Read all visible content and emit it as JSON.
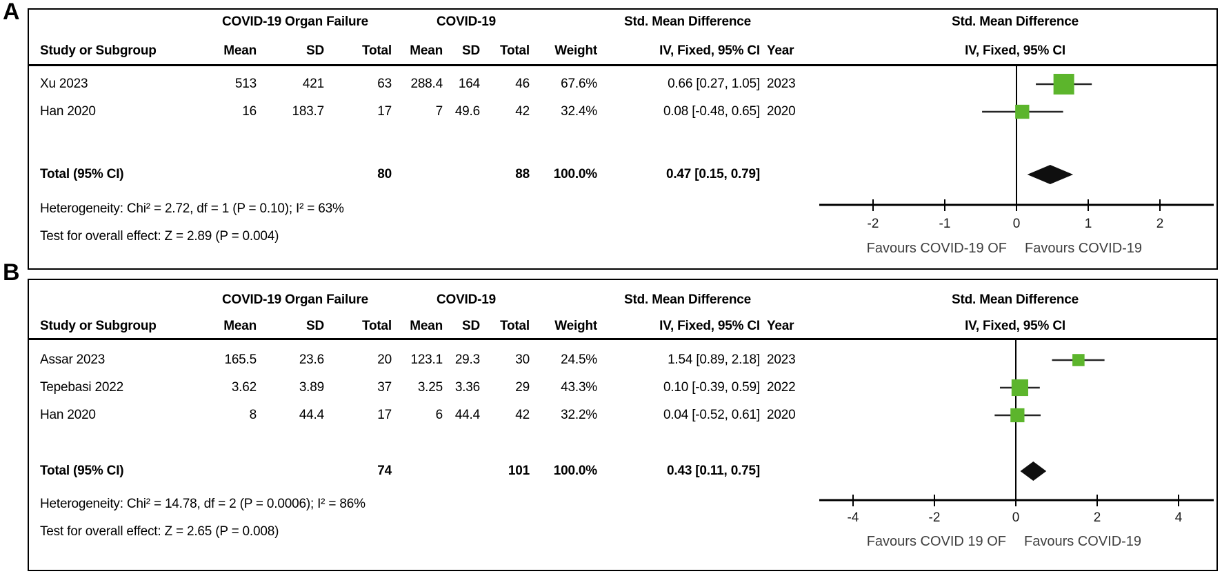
{
  "colors": {
    "square_green": "#5CB52C",
    "diamond_black": "#0f0f0f",
    "ci_line": "#262626",
    "axis_line": "#000000",
    "tick_text": "#1a1a1a",
    "favours_text": "#3f3f3f"
  },
  "table_headers": {
    "study": "Study or Subgroup",
    "mean": "Mean",
    "sd": "SD",
    "total": "Total",
    "weight": "Weight",
    "estimate": "IV, Fixed, 95% CI",
    "year": "Year",
    "group1": "COVID-19 Organ Failure",
    "group2": "COVID-19",
    "smd": "Std. Mean Difference",
    "plot_line1": "Std. Mean Difference",
    "plot_line2": "IV, Fixed, 95% CI"
  },
  "panels": [
    {
      "label": "A",
      "rows": [
        {
          "study": "Xu 2023",
          "mean1": "513",
          "sd1": "421",
          "total1": "63",
          "mean2": "288.4",
          "sd2": "164",
          "total2": "46",
          "weight": "67.6%",
          "estimate": "0.66 [0.27, 1.05]",
          "year": "2023"
        },
        {
          "study": "Han 2020",
          "mean1": "16",
          "sd1": "183.7",
          "total1": "17",
          "mean2": "7",
          "sd2": "49.6",
          "total2": "42",
          "weight": "32.4%",
          "estimate": "0.08 [-0.48, 0.65]",
          "year": "2020"
        }
      ],
      "total": {
        "label": "Total (95% CI)",
        "total1": "80",
        "total2": "88",
        "weight": "100.0%",
        "estimate": "0.47 [0.15, 0.79]"
      },
      "heterogeneity": "Heterogeneity: Chi² = 2.72, df = 1 (P = 0.10); I² = 63%",
      "overall_effect": "Test for overall effect: Z = 2.89 (P = 0.004)"
    },
    {
      "label": "B",
      "rows": [
        {
          "study": "Assar 2023",
          "mean1": "165.5",
          "sd1": "23.6",
          "total1": "20",
          "mean2": "123.1",
          "sd2": "29.3",
          "total2": "30",
          "weight": "24.5%",
          "estimate": "1.54 [0.89, 2.18]",
          "year": "2023"
        },
        {
          "study": "Tepebasi 2022",
          "mean1": "3.62",
          "sd1": "3.89",
          "total1": "37",
          "mean2": "3.25",
          "sd2": "3.36",
          "total2": "29",
          "weight": "43.3%",
          "estimate": "0.10 [-0.39, 0.59]",
          "year": "2022"
        },
        {
          "study": "Han 2020",
          "mean1": "8",
          "sd1": "44.4",
          "total1": "17",
          "mean2": "6",
          "sd2": "44.4",
          "total2": "42",
          "weight": "32.2%",
          "estimate": "0.04 [-0.52, 0.61]",
          "year": "2020"
        }
      ],
      "total": {
        "label": "Total (95% CI)",
        "total1": "74",
        "total2": "101",
        "weight": "100.0%",
        "estimate": "0.43 [0.11, 0.75]"
      },
      "heterogeneity": "Heterogeneity: Chi² = 14.78, df = 2 (P = 0.0006); I² = 86%",
      "overall_effect": "Test for overall effect: Z = 2.65 (P = 0.008)"
    }
  ],
  "chart_data": [
    {
      "type": "forest",
      "panel": "A",
      "title": "Std. Mean Difference, IV, Fixed, 95% CI",
      "studies": [
        {
          "name": "Xu 2023",
          "smd": 0.66,
          "ci": [
            0.27,
            1.05
          ],
          "weight_pct": 67.6,
          "year": 2023
        },
        {
          "name": "Han 2020",
          "smd": 0.08,
          "ci": [
            -0.48,
            0.65
          ],
          "weight_pct": 32.4,
          "year": 2020
        }
      ],
      "overall": {
        "smd": 0.47,
        "ci": [
          0.15,
          0.79
        ],
        "total1": 80,
        "total2": 88,
        "weight_pct": 100.0
      },
      "heterogeneity": {
        "chi2": 2.72,
        "df": 1,
        "p": 0.1,
        "i2_pct": 63
      },
      "overall_test": {
        "z": 2.89,
        "p": 0.004
      },
      "axis": {
        "ticks": [
          -2,
          -1,
          0,
          1,
          2
        ],
        "min": -2.8,
        "max": 2.8
      },
      "xlabel_left": "Favours COVID-19 OF",
      "xlabel_right": "Favours COVID-19"
    },
    {
      "type": "forest",
      "panel": "B",
      "title": "Std. Mean Difference, IV, Fixed, 95% CI",
      "studies": [
        {
          "name": "Assar 2023",
          "smd": 1.54,
          "ci": [
            0.89,
            2.18
          ],
          "weight_pct": 24.5,
          "year": 2023
        },
        {
          "name": "Tepebasi 2022",
          "smd": 0.1,
          "ci": [
            -0.39,
            0.59
          ],
          "weight_pct": 43.3,
          "year": 2022
        },
        {
          "name": "Han 2020",
          "smd": 0.04,
          "ci": [
            -0.52,
            0.61
          ],
          "weight_pct": 32.2,
          "year": 2020
        }
      ],
      "overall": {
        "smd": 0.43,
        "ci": [
          0.11,
          0.75
        ],
        "total1": 74,
        "total2": 101,
        "weight_pct": 100.0
      },
      "heterogeneity": {
        "chi2": 14.78,
        "df": 2,
        "p": 0.0006,
        "i2_pct": 86
      },
      "overall_test": {
        "z": 2.65,
        "p": 0.008
      },
      "axis": {
        "ticks": [
          -4,
          -2,
          0,
          2,
          4
        ],
        "min": -4.9,
        "max": 4.9
      },
      "xlabel_left": "Favours COVID 19 OF",
      "xlabel_right": "Favours COVID-19"
    }
  ]
}
